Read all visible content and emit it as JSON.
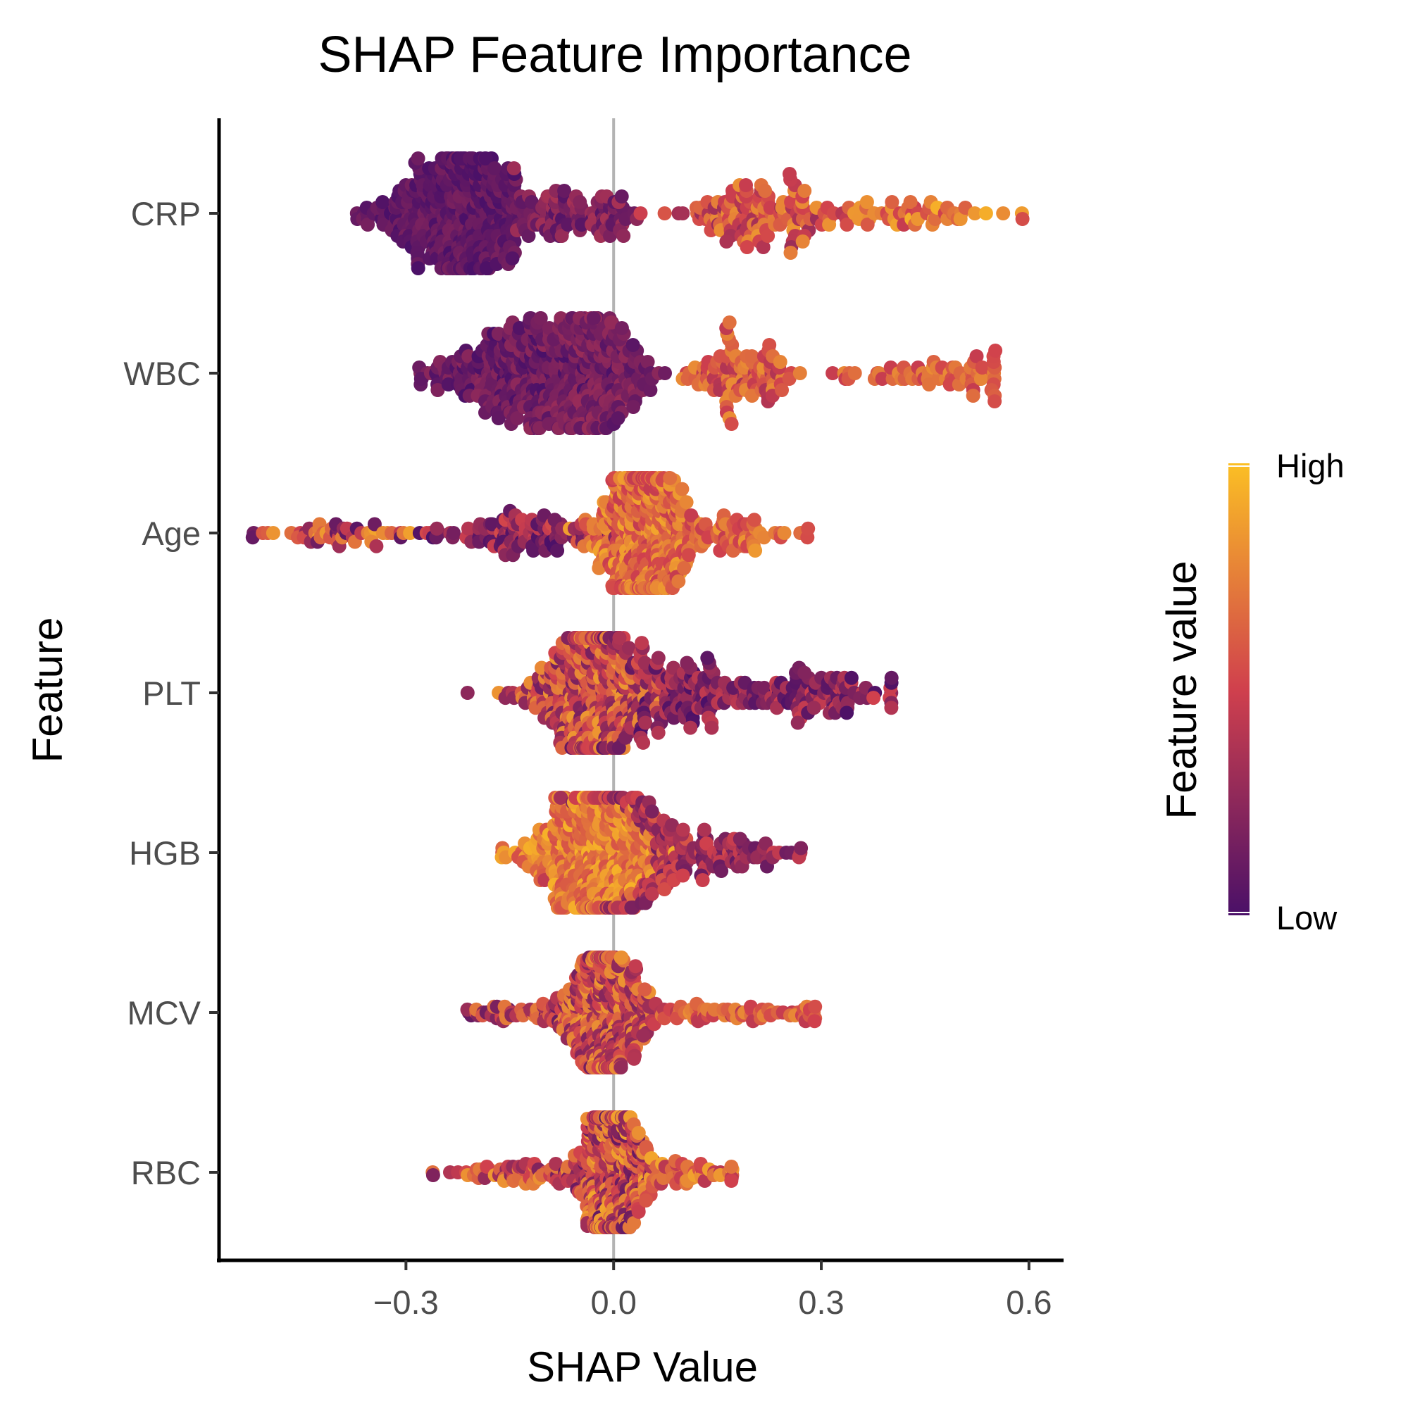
{
  "chart_data": {
    "type": "scatter",
    "subtype": "beeswarm",
    "title": "SHAP Feature Importance",
    "xlabel": "SHAP Value",
    "ylabel": "Feature",
    "xlim": [
      -0.57,
      0.65
    ],
    "xticks": [
      -0.3,
      0.0,
      0.3,
      0.6
    ],
    "xtick_labels": [
      "−0.3",
      "0.0",
      "0.3",
      "0.6"
    ],
    "reference_line_x": 0.0,
    "grid": false,
    "categories": [
      "CRP",
      "WBC",
      "Age",
      "PLT",
      "HGB",
      "MCV",
      "RBC"
    ],
    "color_scale": {
      "title": "Feature value",
      "low_label": "Low",
      "high_label": "High",
      "low_color": "#4a1068",
      "mid_color": "#d0404d",
      "high_color": "#fbbf24",
      "legend_position": "right"
    },
    "series": [
      {
        "feature": "CRP",
        "n_points": 700,
        "x_range": [
          -0.37,
          0.59
        ],
        "clusters": [
          {
            "mean": -0.22,
            "sd": 0.055,
            "weight": 0.58,
            "color_value": [
              0.0,
              0.18
            ]
          },
          {
            "mean": -0.05,
            "sd": 0.045,
            "weight": 0.14,
            "color_value": [
              0.05,
              0.35
            ]
          },
          {
            "mean": 0.21,
            "sd": 0.06,
            "weight": 0.2,
            "color_value": [
              0.3,
              0.85
            ]
          },
          {
            "mean": 0.42,
            "sd": 0.08,
            "weight": 0.08,
            "color_value": [
              0.45,
              0.95
            ]
          }
        ]
      },
      {
        "feature": "WBC",
        "n_points": 700,
        "x_range": [
          -0.28,
          0.55
        ],
        "clusters": [
          {
            "mean": -0.13,
            "sd": 0.06,
            "weight": 0.42,
            "color_value": [
              0.0,
              0.25
            ]
          },
          {
            "mean": -0.02,
            "sd": 0.045,
            "weight": 0.32,
            "color_value": [
              0.05,
              0.3
            ]
          },
          {
            "mean": 0.19,
            "sd": 0.04,
            "weight": 0.16,
            "color_value": [
              0.35,
              0.8
            ]
          },
          {
            "mean": 0.46,
            "sd": 0.07,
            "weight": 0.1,
            "color_value": [
              0.45,
              0.8
            ]
          }
        ]
      },
      {
        "feature": "Age",
        "n_points": 700,
        "x_range": [
          -0.52,
          0.28
        ],
        "clusters": [
          {
            "mean": -0.4,
            "sd": 0.07,
            "weight": 0.08,
            "color_value": [
              0.0,
              0.9
            ]
          },
          {
            "mean": -0.13,
            "sd": 0.06,
            "weight": 0.18,
            "color_value": [
              0.0,
              0.55
            ]
          },
          {
            "mean": 0.04,
            "sd": 0.035,
            "weight": 0.62,
            "color_value": [
              0.45,
              0.9
            ]
          },
          {
            "mean": 0.15,
            "sd": 0.05,
            "weight": 0.12,
            "color_value": [
              0.45,
              0.85
            ]
          }
        ]
      },
      {
        "feature": "PLT",
        "n_points": 700,
        "x_range": [
          -0.21,
          0.4
        ],
        "clusters": [
          {
            "mean": -0.03,
            "sd": 0.045,
            "weight": 0.62,
            "color_value": [
              0.15,
              0.85
            ]
          },
          {
            "mean": 0.09,
            "sd": 0.06,
            "weight": 0.23,
            "color_value": [
              0.0,
              0.45
            ]
          },
          {
            "mean": 0.3,
            "sd": 0.06,
            "weight": 0.15,
            "color_value": [
              0.0,
              0.5
            ]
          }
        ]
      },
      {
        "feature": "HGB",
        "n_points": 700,
        "x_range": [
          -0.16,
          0.27
        ],
        "clusters": [
          {
            "mean": -0.03,
            "sd": 0.045,
            "weight": 0.7,
            "color_value": [
              0.55,
              0.95
            ]
          },
          {
            "mean": 0.05,
            "sd": 0.045,
            "weight": 0.2,
            "color_value": [
              0.15,
              0.6
            ]
          },
          {
            "mean": 0.17,
            "sd": 0.05,
            "weight": 0.1,
            "color_value": [
              0.1,
              0.5
            ]
          }
        ]
      },
      {
        "feature": "MCV",
        "n_points": 700,
        "x_range": [
          -0.21,
          0.29
        ],
        "clusters": [
          {
            "mean": -0.01,
            "sd": 0.03,
            "weight": 0.78,
            "color_value": [
              0.2,
              0.85
            ]
          },
          {
            "mean": -0.12,
            "sd": 0.05,
            "weight": 0.1,
            "color_value": [
              0.1,
              0.75
            ]
          },
          {
            "mean": 0.17,
            "sd": 0.07,
            "weight": 0.12,
            "color_value": [
              0.4,
              0.8
            ]
          }
        ]
      },
      {
        "feature": "RBC",
        "n_points": 700,
        "x_range": [
          -0.26,
          0.17
        ],
        "clusters": [
          {
            "mean": -0.0,
            "sd": 0.025,
            "weight": 0.78,
            "color_value": [
              0.1,
              0.9
            ]
          },
          {
            "mean": -0.12,
            "sd": 0.06,
            "weight": 0.12,
            "color_value": [
              0.2,
              0.85
            ]
          },
          {
            "mean": 0.1,
            "sd": 0.04,
            "weight": 0.1,
            "color_value": [
              0.4,
              0.9
            ]
          }
        ]
      }
    ]
  }
}
